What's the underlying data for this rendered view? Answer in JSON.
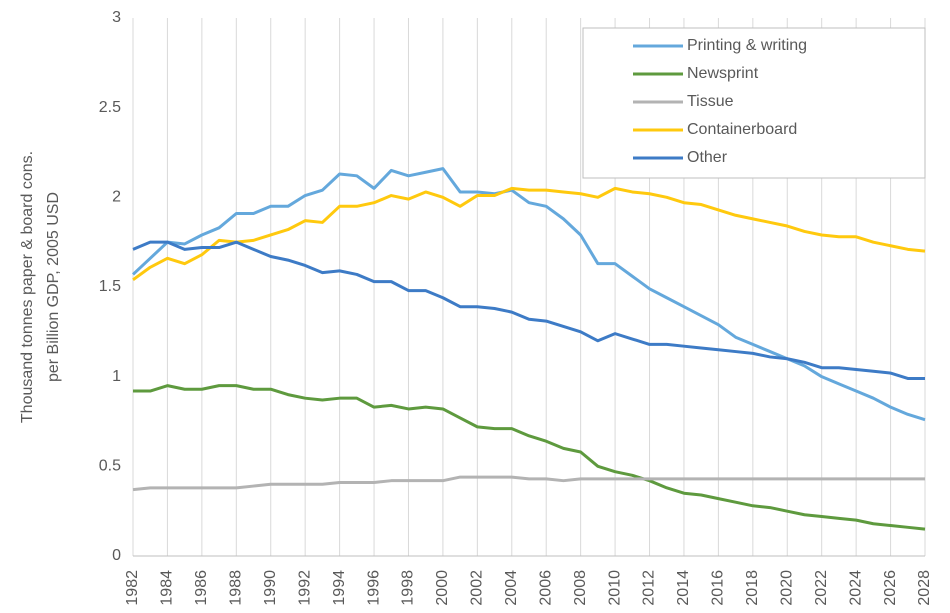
{
  "chart_data": {
    "type": "line",
    "ylabel": [
      "Thousand tonnes paper & board cons.",
      "per Billion GDP, 2005 USD"
    ],
    "x": [
      1982,
      1983,
      1984,
      1985,
      1986,
      1987,
      1988,
      1989,
      1990,
      1991,
      1992,
      1993,
      1994,
      1995,
      1996,
      1997,
      1998,
      1999,
      2000,
      2001,
      2002,
      2003,
      2004,
      2005,
      2006,
      2007,
      2008,
      2009,
      2010,
      2011,
      2012,
      2013,
      2014,
      2015,
      2016,
      2017,
      2018,
      2019,
      2020,
      2021,
      2022,
      2023,
      2024,
      2025,
      2026,
      2027,
      2028
    ],
    "xlim": [
      1982,
      2028
    ],
    "xticks": [
      1982,
      1984,
      1986,
      1988,
      1990,
      1992,
      1994,
      1996,
      1998,
      2000,
      2002,
      2004,
      2006,
      2008,
      2010,
      2012,
      2014,
      2016,
      2018,
      2020,
      2022,
      2024,
      2026,
      2028
    ],
    "ylim": [
      0,
      3
    ],
    "yticks": [
      0,
      0.5,
      1,
      1.5,
      2,
      2.5,
      3
    ],
    "grid": "x",
    "legend": "upper right",
    "series": [
      {
        "name": "Printing & writing",
        "color": "#64a8dc",
        "values": [
          1.57,
          1.66,
          1.75,
          1.74,
          1.79,
          1.83,
          1.91,
          1.91,
          1.95,
          1.95,
          2.01,
          2.04,
          2.13,
          2.12,
          2.05,
          2.15,
          2.12,
          2.14,
          2.16,
          2.03,
          2.03,
          2.02,
          2.04,
          1.97,
          1.95,
          1.88,
          1.79,
          1.63,
          1.63,
          1.56,
          1.49,
          1.44,
          1.39,
          1.34,
          1.29,
          1.22,
          1.18,
          1.14,
          1.1,
          1.06,
          1.0,
          0.96,
          0.92,
          0.88,
          0.83,
          0.79,
          0.76
        ]
      },
      {
        "name": "Newsprint",
        "color": "#5e9a3e",
        "values": [
          0.92,
          0.92,
          0.95,
          0.93,
          0.93,
          0.95,
          0.95,
          0.93,
          0.93,
          0.9,
          0.88,
          0.87,
          0.88,
          0.88,
          0.83,
          0.84,
          0.82,
          0.83,
          0.82,
          0.77,
          0.72,
          0.71,
          0.71,
          0.67,
          0.64,
          0.6,
          0.58,
          0.5,
          0.47,
          0.45,
          0.42,
          0.38,
          0.35,
          0.34,
          0.32,
          0.3,
          0.28,
          0.27,
          0.25,
          0.23,
          0.22,
          0.21,
          0.2,
          0.18,
          0.17,
          0.16,
          0.15
        ]
      },
      {
        "name": "Tissue",
        "color": "#b3b3b3",
        "values": [
          0.37,
          0.38,
          0.38,
          0.38,
          0.38,
          0.38,
          0.38,
          0.39,
          0.4,
          0.4,
          0.4,
          0.4,
          0.41,
          0.41,
          0.41,
          0.42,
          0.42,
          0.42,
          0.42,
          0.44,
          0.44,
          0.44,
          0.44,
          0.43,
          0.43,
          0.42,
          0.43,
          0.43,
          0.43,
          0.43,
          0.43,
          0.43,
          0.43,
          0.43,
          0.43,
          0.43,
          0.43,
          0.43,
          0.43,
          0.43,
          0.43,
          0.43,
          0.43,
          0.43,
          0.43,
          0.43,
          0.43
        ]
      },
      {
        "name": "Containerboard",
        "color": "#ffc90e",
        "values": [
          1.54,
          1.61,
          1.66,
          1.63,
          1.68,
          1.76,
          1.75,
          1.76,
          1.79,
          1.82,
          1.87,
          1.86,
          1.95,
          1.95,
          1.97,
          2.01,
          1.99,
          2.03,
          2.0,
          1.95,
          2.01,
          2.01,
          2.05,
          2.04,
          2.04,
          2.03,
          2.02,
          2.0,
          2.05,
          2.03,
          2.02,
          2.0,
          1.97,
          1.96,
          1.93,
          1.9,
          1.88,
          1.86,
          1.84,
          1.81,
          1.79,
          1.78,
          1.78,
          1.75,
          1.73,
          1.71,
          1.7
        ]
      },
      {
        "name": "Other",
        "color": "#3d7bc6",
        "values": [
          1.71,
          1.75,
          1.75,
          1.71,
          1.72,
          1.72,
          1.75,
          1.71,
          1.67,
          1.65,
          1.62,
          1.58,
          1.59,
          1.57,
          1.53,
          1.53,
          1.48,
          1.48,
          1.44,
          1.39,
          1.39,
          1.38,
          1.36,
          1.32,
          1.31,
          1.28,
          1.25,
          1.2,
          1.24,
          1.21,
          1.18,
          1.18,
          1.17,
          1.16,
          1.15,
          1.14,
          1.13,
          1.11,
          1.1,
          1.08,
          1.05,
          1.05,
          1.04,
          1.03,
          1.02,
          0.99,
          0.99
        ]
      }
    ]
  }
}
